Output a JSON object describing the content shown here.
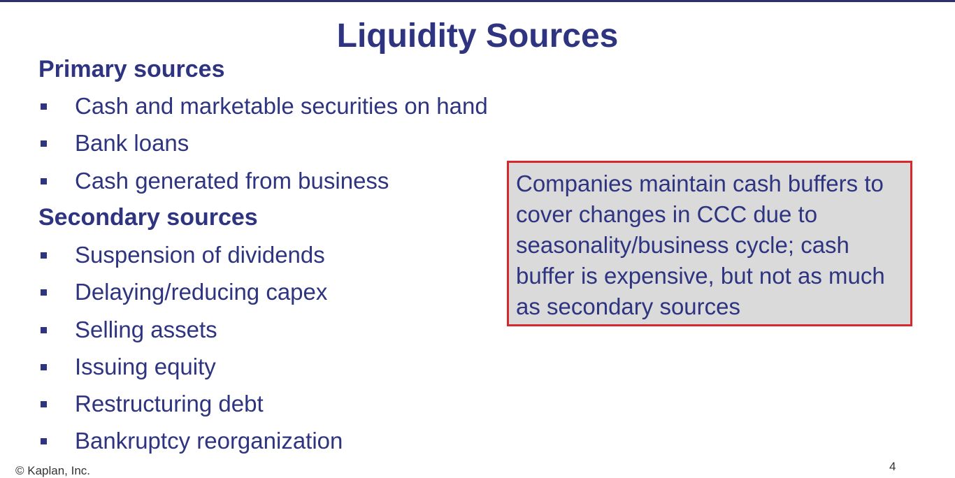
{
  "slide": {
    "title": "Liquidity Sources",
    "primary": {
      "heading": "Primary sources",
      "items": [
        "Cash and marketable securities on hand",
        "Bank loans",
        "Cash generated from business"
      ]
    },
    "secondary": {
      "heading": "Secondary sources",
      "items": [
        "Suspension of dividends",
        "Delaying/reducing capex",
        "Selling assets",
        "Issuing equity",
        "Restructuring debt",
        "Bankruptcy reorganization"
      ]
    },
    "callout": {
      "text": "Companies maintain cash buffers to cover changes in CCC due to seasonality/business cycle; cash buffer is expensive, but not as much as secondary sources"
    },
    "footer": "© Kaplan, Inc.",
    "page_number": "4"
  },
  "colors": {
    "text_navy": "#2e3480",
    "callout_border": "#d7282f",
    "callout_fill": "#dadada"
  }
}
